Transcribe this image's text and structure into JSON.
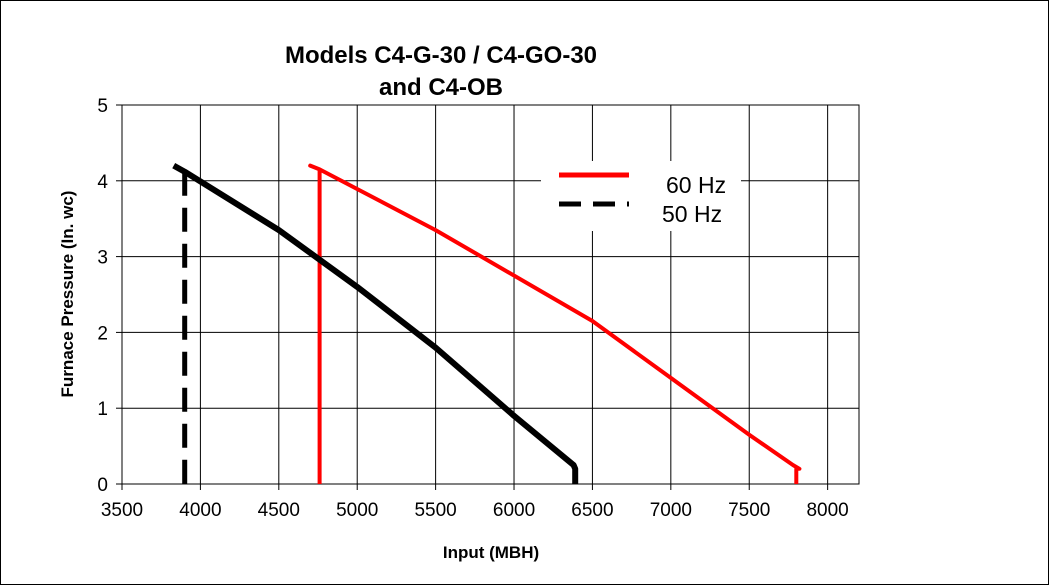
{
  "chart_data": {
    "type": "line",
    "title_lines": [
      "Models C4-G-30 / C4-GO-30",
      "and C4-OB"
    ],
    "xlabel": "Input (MBH)",
    "ylabel": "Furnace Pressure (In. wc)",
    "xlim": [
      3500,
      8200
    ],
    "ylim": [
      0,
      5
    ],
    "x_ticks": [
      "3500",
      "4000",
      "4500",
      "5000",
      "5500",
      "6000",
      "6500",
      "7000",
      "7500",
      "8000"
    ],
    "y_ticks": [
      "0",
      "1",
      "2",
      "3",
      "4",
      "5"
    ],
    "grid": true,
    "legend_position": "top-right",
    "series": [
      {
        "name": "60 Hz",
        "color": "#ff0000",
        "style": "solid",
        "points": [
          [
            4760,
            0
          ],
          [
            4760,
            4.15
          ],
          [
            4700,
            4.2
          ],
          [
            4760,
            4.15
          ],
          [
            5500,
            3.35
          ],
          [
            6500,
            2.15
          ],
          [
            7000,
            1.4
          ],
          [
            7500,
            0.65
          ],
          [
            7780,
            0.25
          ],
          [
            7820,
            0.2
          ],
          [
            7800,
            0.2
          ],
          [
            7800,
            0
          ]
        ]
      },
      {
        "name": "50 Hz",
        "color": "#000000",
        "style": "solid",
        "points": [
          [
            3830,
            4.2
          ],
          [
            3900,
            4.12
          ],
          [
            4500,
            3.35
          ],
          [
            5000,
            2.6
          ],
          [
            5500,
            1.8
          ],
          [
            6000,
            0.9
          ],
          [
            6380,
            0.25
          ],
          [
            6390,
            0.2
          ],
          [
            6390,
            0
          ]
        ]
      },
      {
        "name": "50 Hz",
        "color": "#000000",
        "style": "dashed",
        "points": [
          [
            3900,
            4.12
          ],
          [
            3900,
            0
          ]
        ]
      }
    ]
  }
}
